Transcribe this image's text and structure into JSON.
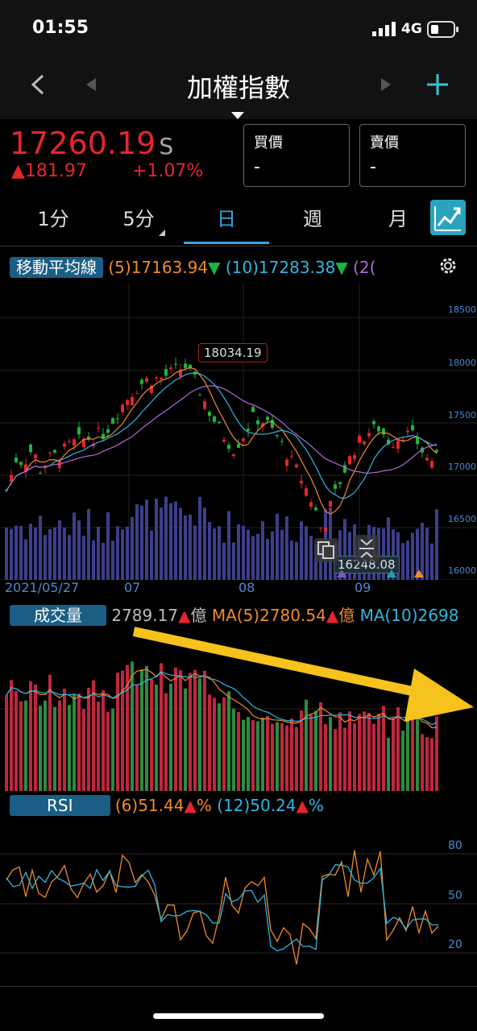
{
  "status": {
    "time": "01:55",
    "network": "4G"
  },
  "nav": {
    "title": "加權指數"
  },
  "quote": {
    "price": "17260.19",
    "price_suffix": "S",
    "change": "▲181.97",
    "change_pct": "+1.07%",
    "bid_label": "買價",
    "bid_value": "-",
    "ask_label": "賣價",
    "ask_value": "-"
  },
  "tabs": [
    "1分",
    "5分",
    "日",
    "週",
    "月"
  ],
  "active_tab": "日",
  "ma_panel": {
    "label": "移動平均線",
    "ma5": "(5)17163.94",
    "ma5_arrow": "▼",
    "ma10": "(10)17283.38",
    "ma10_arrow": "▼",
    "ma20_partial": "(2("
  },
  "price_chart": {
    "y_ticks": [
      "18500",
      "18000",
      "17500",
      "17000",
      "16500",
      "16000"
    ],
    "x_ticks": [
      "2021/05/27",
      "07",
      "08",
      "09"
    ],
    "high_marker": "18034.19",
    "low_marker": "16248.08"
  },
  "volume_panel": {
    "label": "成交量",
    "value": "2789.17",
    "value_arrow": "▲",
    "unit": "億",
    "ma5": "MA(5)2780.54",
    "ma5_arrow": "▲",
    "ma5_unit": "億",
    "ma10_partial": "MA(10)2698"
  },
  "rsi_panel": {
    "label": "RSI",
    "rsi6": "(6)51.44",
    "rsi6_arrow": "▲",
    "rsi6_unit": "%",
    "rsi12": "(12)50.24",
    "rsi12_arrow": "▲",
    "rsi12_unit": "%",
    "y_ticks": [
      "80",
      "50",
      "20"
    ]
  },
  "colors": {
    "up": "#e5262b",
    "down": "#1cb53c",
    "accent": "#33a6e0",
    "arrow": "#f6c21c"
  }
}
